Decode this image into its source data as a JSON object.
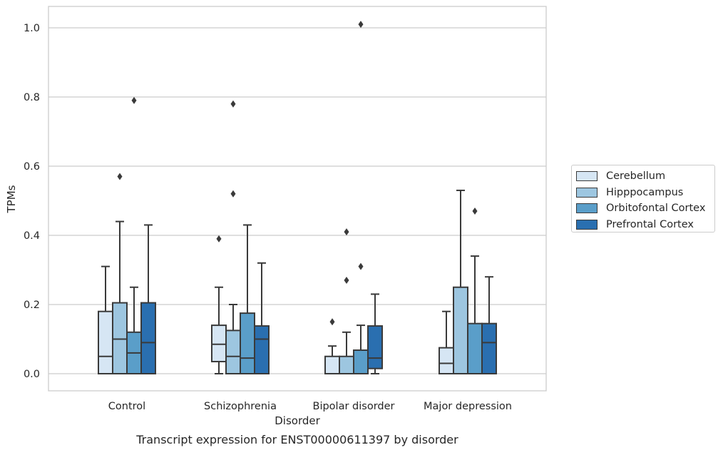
{
  "chart_data": {
    "type": "box",
    "title": "",
    "caption": "Transcript expression for ENST00000611397 by disorder",
    "xlabel": "Disorder",
    "ylabel": "TPMs",
    "ylim": [
      -0.05,
      1.06
    ],
    "yticks": [
      0.0,
      0.2,
      0.4,
      0.6,
      0.8,
      1.0
    ],
    "ytick_labels": [
      "0.0",
      "0.2",
      "0.4",
      "0.6",
      "0.8",
      "1.0"
    ],
    "grid": "horizontal",
    "legend_position": "right",
    "categories": [
      "Control",
      "Schizophrenia",
      "Bipolar disorder",
      "Major depression"
    ],
    "series": [
      {
        "name": "Cerebellum",
        "color": "#d6e6f4",
        "boxes": [
          {
            "whislo": 0.0,
            "q1": 0.0,
            "med": 0.05,
            "q3": 0.18,
            "whishi": 0.31,
            "fliers": []
          },
          {
            "whislo": 0.0,
            "q1": 0.035,
            "med": 0.085,
            "q3": 0.14,
            "whishi": 0.25,
            "fliers": [
              0.39
            ]
          },
          {
            "whislo": 0.0,
            "q1": 0.0,
            "med": 0.0,
            "q3": 0.05,
            "whishi": 0.08,
            "fliers": [
              0.15
            ]
          },
          {
            "whislo": 0.0,
            "q1": 0.0,
            "med": 0.03,
            "q3": 0.075,
            "whishi": 0.18,
            "fliers": []
          }
        ]
      },
      {
        "name": "Hipppocampus",
        "color": "#9dc6e0",
        "boxes": [
          {
            "whislo": 0.0,
            "q1": 0.0,
            "med": 0.1,
            "q3": 0.205,
            "whishi": 0.44,
            "fliers": [
              0.57
            ]
          },
          {
            "whislo": 0.0,
            "q1": 0.0,
            "med": 0.05,
            "q3": 0.125,
            "whishi": 0.2,
            "fliers": [
              0.52,
              0.78
            ]
          },
          {
            "whislo": 0.0,
            "q1": 0.0,
            "med": 0.0,
            "q3": 0.05,
            "whishi": 0.12,
            "fliers": [
              0.27,
              0.41
            ]
          },
          {
            "whislo": 0.0,
            "q1": 0.0,
            "med": 0.0,
            "q3": 0.25,
            "whishi": 0.53,
            "fliers": []
          }
        ]
      },
      {
        "name": "Orbitofontal Cortex",
        "color": "#5a9ec9",
        "boxes": [
          {
            "whislo": 0.0,
            "q1": 0.0,
            "med": 0.06,
            "q3": 0.12,
            "whishi": 0.25,
            "fliers": [
              0.79
            ]
          },
          {
            "whislo": 0.0,
            "q1": 0.0,
            "med": 0.045,
            "q3": 0.175,
            "whishi": 0.43,
            "fliers": []
          },
          {
            "whislo": 0.0,
            "q1": 0.0,
            "med": 0.0,
            "q3": 0.068,
            "whishi": 0.14,
            "fliers": [
              0.31,
              1.01
            ]
          },
          {
            "whislo": 0.0,
            "q1": 0.0,
            "med": 0.0,
            "q3": 0.145,
            "whishi": 0.34,
            "fliers": [
              0.47
            ]
          }
        ]
      },
      {
        "name": "Prefrontal Cortex",
        "color": "#2a6fb0",
        "boxes": [
          {
            "whislo": 0.0,
            "q1": 0.0,
            "med": 0.09,
            "q3": 0.205,
            "whishi": 0.43,
            "fliers": []
          },
          {
            "whislo": 0.0,
            "q1": 0.0,
            "med": 0.1,
            "q3": 0.138,
            "whishi": 0.32,
            "fliers": []
          },
          {
            "whislo": 0.0,
            "q1": 0.015,
            "med": 0.045,
            "q3": 0.138,
            "whishi": 0.23,
            "fliers": []
          },
          {
            "whislo": 0.0,
            "q1": 0.0,
            "med": 0.09,
            "q3": 0.145,
            "whishi": 0.28,
            "fliers": []
          }
        ]
      }
    ]
  }
}
